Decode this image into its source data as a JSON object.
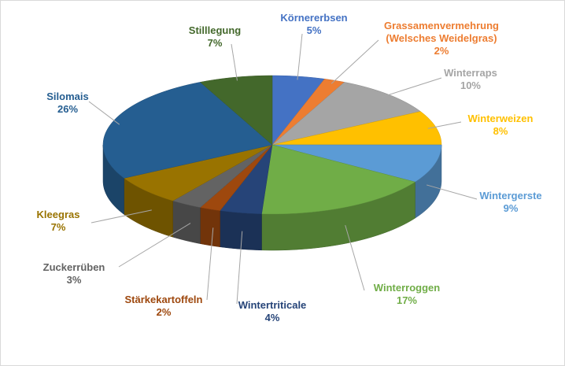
{
  "chart_data": {
    "type": "pie3d",
    "categories": [
      "Körnererbsen",
      "Grassamenvermehrung (Welsches Weidelgras)",
      "Winterraps",
      "Winterweizen",
      "Wintergerste",
      "Winterroggen",
      "Wintertriticale",
      "Stärkekartoffeln",
      "Zuckerrüben",
      "Kleegras",
      "Silomais",
      "Stilllegung"
    ],
    "values": [
      5,
      2,
      10,
      8,
      9,
      17,
      4,
      2,
      3,
      7,
      26,
      7
    ],
    "value_labels": [
      "5%",
      "2%",
      "10%",
      "8%",
      "9%",
      "17%",
      "4%",
      "2%",
      "3%",
      "7%",
      "26%",
      "7%"
    ],
    "colors": [
      "#4472c4",
      "#ed7d31",
      "#a5a5a5",
      "#ffc000",
      "#5b9bd5",
      "#70ad47",
      "#264478",
      "#9e480e",
      "#636363",
      "#997300",
      "#255e91",
      "#43682b"
    ]
  }
}
